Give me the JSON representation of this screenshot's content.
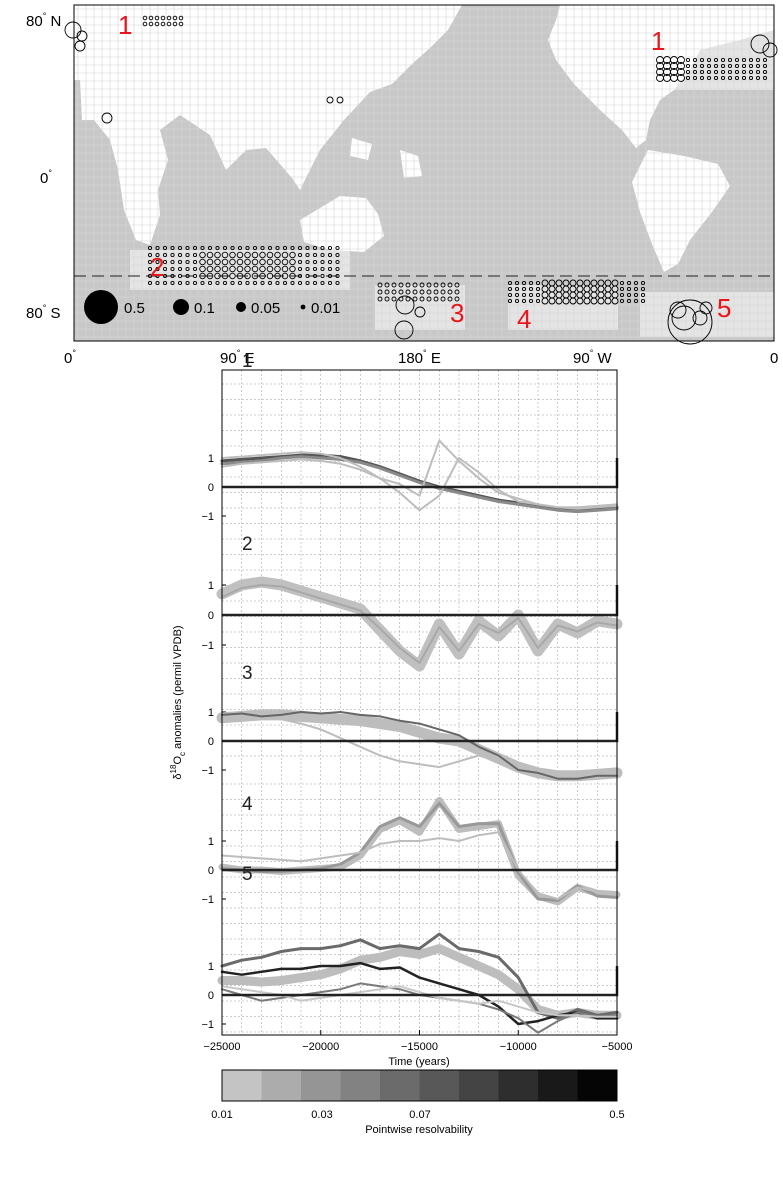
{
  "map": {
    "lat_labels": [
      {
        "deg": "80",
        "hem": "N"
      },
      {
        "deg": "0",
        "hem": ""
      },
      {
        "deg": "80",
        "hem": "S"
      }
    ],
    "lon_labels": [
      {
        "deg": "0",
        "hem": ""
      },
      {
        "deg": "90",
        "hem": "E"
      },
      {
        "deg": "180",
        "hem": "E"
      },
      {
        "deg": "90",
        "hem": "W"
      },
      {
        "deg": "0",
        "hem": ""
      }
    ],
    "region_labels": [
      "1",
      "1",
      "2",
      "3",
      "4",
      "5"
    ],
    "size_legend": [
      "0.5",
      "0.1",
      "0.05",
      "0.01"
    ],
    "colors": {
      "ocean": "#c8c8c8",
      "region_box": "#e4e4e4",
      "land": "#ffffff",
      "region_text": "#e8161b"
    }
  },
  "chart_data": {
    "type": "line",
    "x_axis": {
      "label": "Time (years)",
      "range": [
        -25000,
        -5000
      ],
      "ticks": [
        "−25000",
        "−20000",
        "−15000",
        "−10000",
        "−5000"
      ]
    },
    "y_axis": {
      "label_pre": "δ",
      "label_sup": "18",
      "label_mid": "O",
      "label_sub": "c",
      "label_post": " anomalies (permil VPDB)",
      "tick_labels": [
        "1",
        "0",
        "−1"
      ]
    },
    "grid": true,
    "panels": [
      {
        "label": "1",
        "ymax": 1.6,
        "ymin": -1.5,
        "x": [
          -25000,
          -24000,
          -23000,
          -22000,
          -21000,
          -20000,
          -19000,
          -18000,
          -17000,
          -16000,
          -15000,
          -14000,
          -13000,
          -12000,
          -11000,
          -10000,
          -9000,
          -8000,
          -7000,
          -6000,
          -5000
        ],
        "series": [
          {
            "color": "#555555",
            "width": 3,
            "values": [
              0.9,
              0.95,
              1.0,
              1.05,
              1.1,
              1.1,
              1.05,
              0.9,
              0.7,
              0.45,
              0.2,
              0.0,
              -0.15,
              -0.3,
              -0.45,
              -0.55,
              -0.65,
              -0.75,
              -0.8,
              -0.75,
              -0.7
            ]
          },
          {
            "color": "#8a8a8a",
            "width": 3,
            "values": [
              0.8,
              0.85,
              0.9,
              1.0,
              1.05,
              1.0,
              0.95,
              0.85,
              0.65,
              0.4,
              0.15,
              -0.05,
              -0.2,
              -0.35,
              -0.5,
              -0.6,
              -0.7,
              -0.8,
              -0.85,
              -0.8,
              -0.75
            ]
          },
          {
            "color": "#bdbdbd",
            "width": 2,
            "values": [
              0.7,
              0.8,
              0.85,
              0.9,
              0.95,
              0.9,
              0.8,
              0.6,
              0.3,
              0.1,
              -0.3,
              1.6,
              0.9,
              0.3,
              -0.2,
              -0.4,
              -0.6,
              -0.7,
              -0.75,
              -0.7,
              -0.65
            ]
          },
          {
            "color": "#bdbdbd",
            "width": 2,
            "values": [
              1.0,
              1.05,
              1.1,
              1.15,
              1.2,
              1.15,
              1.0,
              0.7,
              0.3,
              -0.2,
              -0.8,
              -0.3,
              1.0,
              0.5,
              -0.1,
              -0.5,
              -0.6,
              -0.7,
              -0.7,
              -0.65,
              -0.6
            ]
          }
        ]
      },
      {
        "label": "2",
        "ymax": 1.6,
        "ymin": -2.0,
        "x": [
          -25000,
          -24000,
          -23000,
          -22000,
          -21000,
          -20000,
          -19000,
          -18000,
          -17000,
          -16000,
          -15000,
          -14000,
          -13000,
          -12000,
          -11000,
          -10000,
          -9000,
          -8000,
          -7000,
          -6000,
          -5000
        ],
        "series": [
          {
            "color": "#c0c0c0",
            "width": 11,
            "values": [
              0.7,
              1.0,
              1.1,
              1.0,
              0.8,
              0.6,
              0.4,
              0.2,
              -0.5,
              -1.2,
              -1.7,
              -0.3,
              -1.3,
              -0.2,
              -0.7,
              0.0,
              -1.2,
              -0.3,
              -0.6,
              -0.2,
              -0.3
            ]
          },
          {
            "color": "#a8a8a8",
            "width": 2,
            "values": [
              0.6,
              0.9,
              1.0,
              0.95,
              0.75,
              0.55,
              0.35,
              0.15,
              -0.45,
              -1.1,
              -1.6,
              -0.4,
              -1.2,
              -0.3,
              -0.6,
              -0.1,
              -1.1,
              -0.35,
              -0.55,
              -0.25,
              -0.35
            ]
          }
        ]
      },
      {
        "label": "3",
        "ymax": 1.4,
        "ymin": -1.5,
        "x": [
          -25000,
          -24000,
          -23000,
          -22000,
          -21000,
          -20000,
          -19000,
          -18000,
          -17000,
          -16000,
          -15000,
          -14000,
          -13000,
          -12000,
          -11000,
          -10000,
          -9000,
          -8000,
          -7000,
          -6000,
          -5000
        ],
        "series": [
          {
            "color": "#bdbdbd",
            "width": 11,
            "values": [
              0.8,
              0.85,
              0.9,
              0.9,
              0.85,
              0.8,
              0.75,
              0.7,
              0.6,
              0.5,
              0.3,
              0.1,
              0.0,
              -0.3,
              -0.6,
              -0.9,
              -1.1,
              -1.2,
              -1.2,
              -1.15,
              -1.1
            ]
          },
          {
            "color": "#bdbdbd",
            "width": 2,
            "values": [
              0.7,
              0.75,
              0.8,
              0.75,
              0.6,
              0.4,
              0.1,
              -0.2,
              -0.5,
              -0.7,
              -0.8,
              -0.9,
              -0.7,
              -0.5,
              -0.7,
              -0.9,
              -1.1,
              -1.2,
              -1.2,
              -1.15,
              -1.1
            ]
          },
          {
            "color": "#666666",
            "width": 2,
            "values": [
              0.9,
              0.95,
              0.85,
              0.9,
              1.0,
              0.95,
              1.0,
              0.9,
              0.85,
              0.7,
              0.6,
              0.4,
              0.2,
              -0.2,
              -0.5,
              -1.0,
              -1.1,
              -1.3,
              -1.3,
              -1.2,
              -1.2
            ]
          }
        ]
      },
      {
        "label": "4",
        "ymax": 2.4,
        "ymin": -1.5,
        "x": [
          -25000,
          -24000,
          -23000,
          -22000,
          -21000,
          -20000,
          -19000,
          -18000,
          -17000,
          -16000,
          -15000,
          -14000,
          -13000,
          -12000,
          -11000,
          -10000,
          -9000,
          -8000,
          -7000,
          -6000,
          -5000
        ],
        "series": [
          {
            "color": "#bdbdbd",
            "width": 7,
            "values": [
              0.1,
              0.0,
              0.0,
              -0.05,
              0.0,
              0.05,
              0.1,
              0.5,
              1.4,
              1.7,
              1.3,
              2.4,
              1.4,
              1.5,
              1.6,
              -0.2,
              -0.9,
              -1.1,
              -0.6,
              -0.8,
              -0.85
            ]
          },
          {
            "color": "#999999",
            "width": 3,
            "values": [
              0.05,
              0.0,
              -0.05,
              -0.05,
              0.0,
              0.05,
              0.2,
              0.6,
              1.5,
              1.8,
              1.5,
              2.3,
              1.5,
              1.6,
              1.6,
              -0.1,
              -1.0,
              -1.05,
              -0.55,
              -0.9,
              -0.95
            ]
          },
          {
            "color": "#bdbdbd",
            "width": 2,
            "values": [
              0.5,
              0.45,
              0.4,
              0.35,
              0.3,
              0.4,
              0.5,
              0.6,
              0.9,
              1.0,
              1.0,
              1.1,
              1.0,
              1.2,
              1.3,
              0.0,
              -0.8,
              -1.0,
              -0.6,
              -0.75,
              -0.8
            ]
          }
        ]
      },
      {
        "label": "5",
        "ymax": 2.2,
        "ymin": -1.6,
        "x": [
          -25000,
          -24000,
          -23000,
          -22000,
          -21000,
          -20000,
          -19000,
          -18000,
          -17000,
          -16000,
          -15000,
          -14000,
          -13000,
          -12000,
          -11000,
          -10000,
          -9000,
          -8000,
          -7000,
          -6000,
          -5000
        ],
        "series": [
          {
            "color": "#bdbdbd",
            "width": 9,
            "values": [
              0.5,
              0.5,
              0.45,
              0.5,
              0.6,
              0.7,
              0.9,
              1.2,
              1.3,
              1.5,
              1.4,
              1.6,
              1.3,
              1.0,
              0.7,
              0.2,
              -0.5,
              -0.7,
              -0.6,
              -0.7,
              -0.7
            ]
          },
          {
            "color": "#6a6a6a",
            "width": 3,
            "values": [
              1.0,
              1.2,
              1.3,
              1.5,
              1.6,
              1.6,
              1.7,
              1.9,
              1.6,
              1.7,
              1.6,
              2.1,
              1.6,
              1.5,
              1.3,
              0.6,
              -0.6,
              -0.8,
              -0.5,
              -0.7,
              -0.6
            ]
          },
          {
            "color": "#222222",
            "width": 2.5,
            "values": [
              0.8,
              0.7,
              0.8,
              0.9,
              0.9,
              1.0,
              1.0,
              1.1,
              0.9,
              0.95,
              0.6,
              0.4,
              0.2,
              0.0,
              -0.4,
              -1.0,
              -0.9,
              -0.7,
              -0.6,
              -0.8,
              -0.8
            ]
          },
          {
            "color": "#7a7a7a",
            "width": 2,
            "values": [
              0.2,
              0.0,
              -0.2,
              -0.1,
              0.0,
              0.1,
              0.2,
              0.4,
              0.3,
              0.2,
              0.0,
              -0.1,
              -0.2,
              -0.3,
              -0.5,
              -0.8,
              -1.3,
              -0.9,
              -0.6,
              -0.75,
              -0.7
            ]
          },
          {
            "color": "#c8c8c8",
            "width": 2,
            "values": [
              0.3,
              0.2,
              0.1,
              0.0,
              -0.2,
              -0.1,
              0.0,
              0.1,
              0.2,
              0.3,
              0.1,
              -0.1,
              -0.2,
              -0.3,
              -0.2,
              -0.4,
              -0.6,
              -0.7,
              -0.7,
              -0.75,
              -0.75
            ]
          }
        ]
      }
    ]
  },
  "colorbar": {
    "label": "Pointwise resolvability",
    "tick_labels": [
      "0.01",
      "0.03",
      "0.07",
      "0.5"
    ],
    "colors": [
      "#c4c4c4",
      "#acacac",
      "#959595",
      "#828282",
      "#6b6b6b",
      "#585858",
      "#444444",
      "#2e2e2e",
      "#191919",
      "#050505"
    ]
  }
}
